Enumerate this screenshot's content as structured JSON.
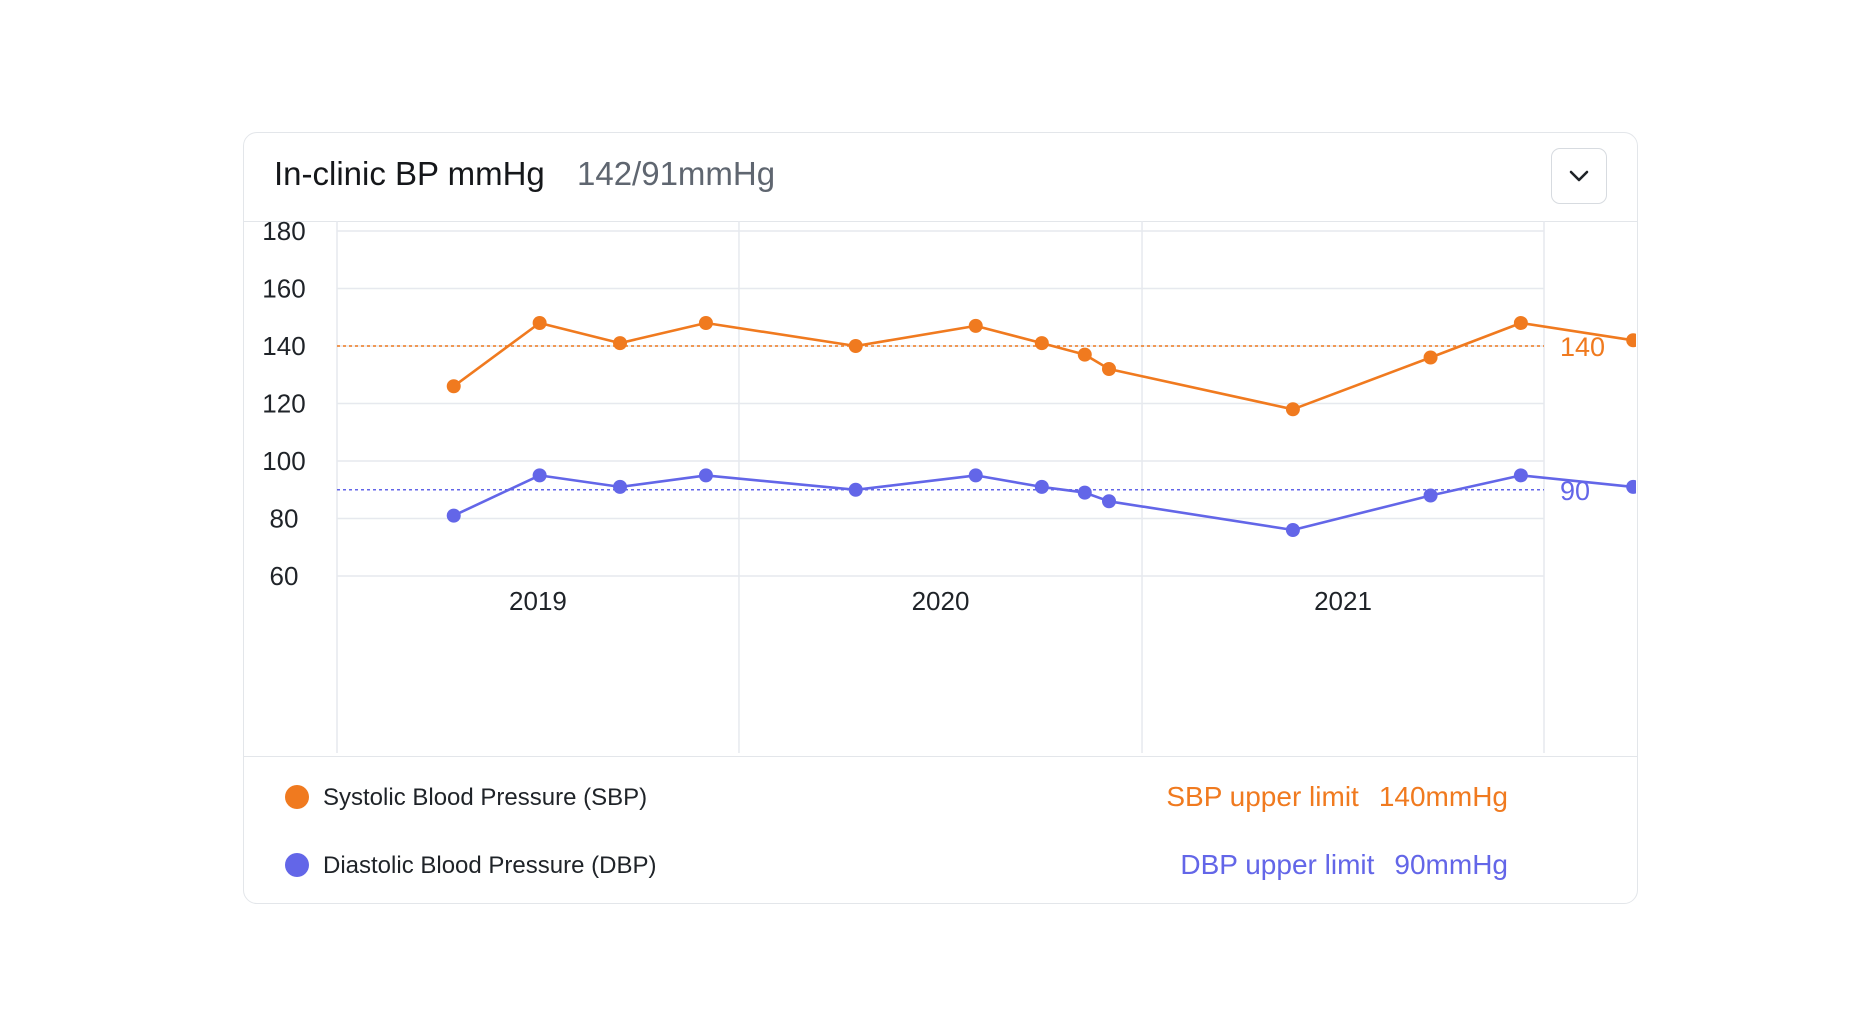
{
  "header": {
    "title": "In-clinic BP mmHg",
    "current_reading": "142/91mmHg",
    "dropdown_icon": "chevron-down-icon"
  },
  "colors": {
    "sbp": "#f07a1f",
    "dbp": "#6366e8",
    "grid": "#e6e9ee",
    "border": "#e3e6ea"
  },
  "legend": {
    "sbp_label": "Systolic Blood Pressure (SBP)",
    "dbp_label": "Diastolic Blood Pressure (DBP)",
    "sbp_limit_label": "SBP upper limit",
    "sbp_limit_value": "140mmHg",
    "dbp_limit_label": "DBP upper limit",
    "dbp_limit_value": "90mmHg"
  },
  "chart_data": {
    "type": "line",
    "title": "In-clinic BP mmHg",
    "x_ticks": [
      "2019",
      "2020",
      "2021"
    ],
    "x_range": [
      "2018-07-01",
      "2021-07-01"
    ],
    "ylim": [
      50,
      186
    ],
    "y_ticks": [
      60,
      80,
      100,
      120,
      140,
      160,
      180
    ],
    "x": [
      "2018-10-15",
      "2019-01-01",
      "2019-03-15",
      "2019-06-01",
      "2019-10-15",
      "2020-02-01",
      "2020-04-01",
      "2020-05-10",
      "2020-06-01",
      "2020-11-15",
      "2021-03-20",
      "2021-06-10",
      "2021-09-20"
    ],
    "series": [
      {
        "name": "Systolic Blood Pressure (SBP)",
        "color": "#f07a1f",
        "values": [
          126,
          148,
          141,
          148,
          140,
          147,
          141,
          137,
          132,
          118,
          136,
          148,
          142
        ]
      },
      {
        "name": "Diastolic Blood Pressure (DBP)",
        "color": "#6366e8",
        "values": [
          81,
          95,
          91,
          95,
          90,
          95,
          91,
          89,
          86,
          76,
          88,
          95,
          91
        ]
      }
    ],
    "reference_lines": [
      {
        "series": "Systolic Blood Pressure (SBP)",
        "value": 140,
        "label": "140",
        "color": "#f07a1f",
        "style": "dotted"
      },
      {
        "series": "Diastolic Blood Pressure (DBP)",
        "value": 90,
        "label": "90",
        "color": "#6366e8",
        "style": "dotted"
      }
    ],
    "grid": true,
    "legend_position": "bottom"
  }
}
